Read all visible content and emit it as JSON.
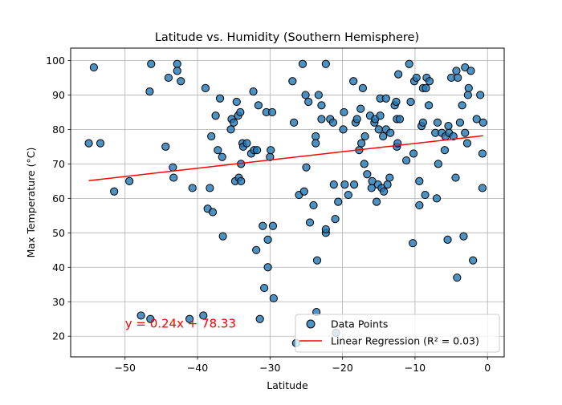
{
  "chart_data": {
    "type": "scatter",
    "title": "Latitude vs. Humidity (Southern Hemisphere)",
    "xlabel": "Latitude",
    "ylabel": "Max Temperature (°C)",
    "xlim": [
      -57.5,
      2.3
    ],
    "ylim": [
      14.0,
      103.6
    ],
    "xticks": [
      -50,
      -40,
      -30,
      -20,
      -10,
      0
    ],
    "xtick_labels": [
      "−50",
      "−40",
      "−30",
      "−20",
      "−10",
      "0"
    ],
    "yticks": [
      20,
      30,
      40,
      50,
      60,
      70,
      80,
      90,
      100
    ],
    "ytick_labels": [
      "20",
      "30",
      "40",
      "50",
      "60",
      "70",
      "80",
      "90",
      "100"
    ],
    "grid": true,
    "legend_position": "lower right",
    "series": [
      {
        "name": "Data Points",
        "kind": "scatter",
        "color": "#1f77b4",
        "points": [
          [
            -54.3,
            98
          ],
          [
            -55.0,
            76
          ],
          [
            -53.4,
            76
          ],
          [
            -51.5,
            62
          ],
          [
            -49.4,
            65
          ],
          [
            -47.8,
            26
          ],
          [
            -46.5,
            25
          ],
          [
            -46.6,
            91
          ],
          [
            -46.4,
            99
          ],
          [
            -44.4,
            75
          ],
          [
            -44.0,
            95
          ],
          [
            -43.3,
            66
          ],
          [
            -43.4,
            69
          ],
          [
            -42.8,
            99
          ],
          [
            -42.8,
            97
          ],
          [
            -42.3,
            94
          ],
          [
            -40.7,
            63
          ],
          [
            -41.1,
            25
          ],
          [
            -39.2,
            26
          ],
          [
            -38.9,
            92
          ],
          [
            -38.6,
            57
          ],
          [
            -38.3,
            63
          ],
          [
            -38.1,
            78
          ],
          [
            -37.9,
            56
          ],
          [
            -37.5,
            84
          ],
          [
            -37.2,
            74
          ],
          [
            -36.9,
            89
          ],
          [
            -36.6,
            72
          ],
          [
            -36.5,
            49
          ],
          [
            -35.4,
            80
          ],
          [
            -35.3,
            83
          ],
          [
            -35.0,
            82
          ],
          [
            -34.8,
            65
          ],
          [
            -34.6,
            88
          ],
          [
            -34.4,
            84
          ],
          [
            -34.3,
            66
          ],
          [
            -34.1,
            85
          ],
          [
            -34.0,
            65
          ],
          [
            -34.0,
            70
          ],
          [
            -33.8,
            76
          ],
          [
            -33.7,
            75
          ],
          [
            -33.2,
            76
          ],
          [
            -32.6,
            73
          ],
          [
            -32.3,
            91
          ],
          [
            -32.2,
            74
          ],
          [
            -31.9,
            45
          ],
          [
            -31.8,
            74
          ],
          [
            -31.6,
            87
          ],
          [
            -31.4,
            25
          ],
          [
            -31.0,
            52
          ],
          [
            -30.8,
            34
          ],
          [
            -30.5,
            85
          ],
          [
            -30.3,
            48
          ],
          [
            -30.3,
            40
          ],
          [
            -30.0,
            72
          ],
          [
            -29.9,
            74
          ],
          [
            -29.7,
            85
          ],
          [
            -29.6,
            52
          ],
          [
            -29.5,
            31
          ],
          [
            -26.9,
            94
          ],
          [
            -26.7,
            82
          ],
          [
            -26.4,
            18
          ],
          [
            -26.0,
            61
          ],
          [
            -25.5,
            99
          ],
          [
            -25.3,
            62
          ],
          [
            -25.1,
            90
          ],
          [
            -25.0,
            69
          ],
          [
            -24.7,
            88
          ],
          [
            -24.5,
            53
          ],
          [
            -24.0,
            58
          ],
          [
            -23.7,
            78
          ],
          [
            -23.7,
            76
          ],
          [
            -23.6,
            27
          ],
          [
            -23.5,
            42
          ],
          [
            -23.3,
            90
          ],
          [
            -22.9,
            87
          ],
          [
            -22.9,
            83
          ],
          [
            -22.3,
            99
          ],
          [
            -22.3,
            50
          ],
          [
            -22.3,
            51
          ],
          [
            -21.7,
            83
          ],
          [
            -21.3,
            82
          ],
          [
            -21.2,
            64
          ],
          [
            -21.0,
            54
          ],
          [
            -20.9,
            21
          ],
          [
            -20.6,
            59
          ],
          [
            -19.9,
            80
          ],
          [
            -19.8,
            85
          ],
          [
            -19.7,
            64
          ],
          [
            -19.2,
            61
          ],
          [
            -18.5,
            94
          ],
          [
            -18.4,
            64
          ],
          [
            -18.2,
            82
          ],
          [
            -18.0,
            83
          ],
          [
            -17.7,
            74
          ],
          [
            -17.5,
            86
          ],
          [
            -17.4,
            76
          ],
          [
            -17.2,
            92
          ],
          [
            -17.0,
            70
          ],
          [
            -16.9,
            78
          ],
          [
            -16.6,
            67
          ],
          [
            -16.2,
            84
          ],
          [
            -16.0,
            63
          ],
          [
            -15.9,
            65
          ],
          [
            -15.6,
            82
          ],
          [
            -15.5,
            83
          ],
          [
            -15.3,
            59
          ],
          [
            -15.1,
            64
          ],
          [
            -15.0,
            80
          ],
          [
            -14.8,
            84
          ],
          [
            -14.8,
            89
          ],
          [
            -14.6,
            63
          ],
          [
            -14.4,
            78
          ],
          [
            -14.3,
            62
          ],
          [
            -14.0,
            80
          ],
          [
            -14.0,
            89
          ],
          [
            -13.8,
            64
          ],
          [
            -13.5,
            66
          ],
          [
            -13.4,
            79
          ],
          [
            -12.8,
            87
          ],
          [
            -12.6,
            88
          ],
          [
            -12.5,
            83
          ],
          [
            -12.5,
            75
          ],
          [
            -12.4,
            76
          ],
          [
            -12.3,
            96
          ],
          [
            -12.1,
            83
          ],
          [
            -11.2,
            71
          ],
          [
            -10.8,
            99
          ],
          [
            -10.6,
            88
          ],
          [
            -10.3,
            47
          ],
          [
            -10.2,
            73
          ],
          [
            -10.1,
            94
          ],
          [
            -9.8,
            95
          ],
          [
            -9.4,
            58
          ],
          [
            -9.4,
            65
          ],
          [
            -9.1,
            81
          ],
          [
            -8.9,
            82
          ],
          [
            -8.9,
            92
          ],
          [
            -8.6,
            61
          ],
          [
            -8.5,
            92
          ],
          [
            -8.4,
            95
          ],
          [
            -8.1,
            87
          ],
          [
            -8.0,
            94
          ],
          [
            -7.2,
            79
          ],
          [
            -7.0,
            60
          ],
          [
            -6.9,
            82
          ],
          [
            -6.8,
            70
          ],
          [
            -6.3,
            79
          ],
          [
            -5.9,
            74
          ],
          [
            -5.8,
            78
          ],
          [
            -5.5,
            48
          ],
          [
            -5.4,
            81
          ],
          [
            -5.3,
            79
          ],
          [
            -5.0,
            95
          ],
          [
            -4.7,
            78
          ],
          [
            -4.4,
            66
          ],
          [
            -4.3,
            97
          ],
          [
            -4.2,
            37
          ],
          [
            -4.1,
            95
          ],
          [
            -3.8,
            82
          ],
          [
            -3.5,
            87
          ],
          [
            -3.3,
            49
          ],
          [
            -3.1,
            98
          ],
          [
            -3.1,
            79
          ],
          [
            -2.8,
            76
          ],
          [
            -2.7,
            90
          ],
          [
            -2.6,
            92
          ],
          [
            -2.3,
            97
          ],
          [
            -2.0,
            42
          ],
          [
            -1.5,
            83
          ],
          [
            -1.0,
            90
          ],
          [
            -0.7,
            73
          ],
          [
            -0.7,
            63
          ],
          [
            -0.6,
            82
          ]
        ]
      },
      {
        "name": "Linear Regression (R² = 0.03)",
        "kind": "line",
        "color": "#ff0000",
        "x_range": [
          -55.0,
          -0.6
        ],
        "slope": 0.24,
        "intercept": 78.33
      }
    ],
    "annotations": [
      {
        "text": "y = 0.24x + 78.33",
        "x": -50,
        "y": 22.5,
        "color": "#ff0000"
      }
    ]
  }
}
